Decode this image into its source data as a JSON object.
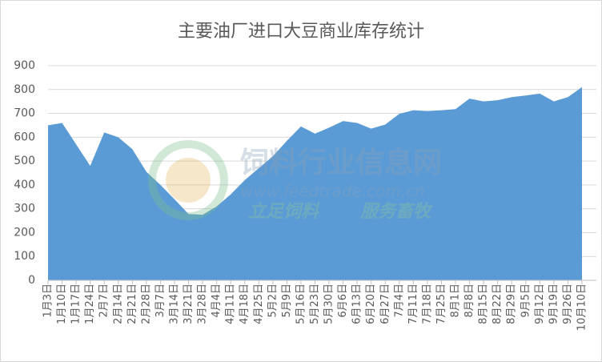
{
  "chart_data": {
    "type": "area",
    "title": "主要油厂进口大豆商业库存统计",
    "categories": [
      "1月3日",
      "1月10日",
      "1月17日",
      "1月24日",
      "2月7日",
      "2月14日",
      "2月21日",
      "2月28日",
      "3月7日",
      "3月14日",
      "3月21日",
      "3月28日",
      "4月4日",
      "4月11日",
      "4月18日",
      "4月25日",
      "5月2日",
      "5月9日",
      "5月16日",
      "5月23日",
      "5月30日",
      "6月6日",
      "6月13日",
      "6月20日",
      "6月27日",
      "7月4日",
      "7月11日",
      "7月18日",
      "7月25日",
      "8月1日",
      "8月8日",
      "8月15日",
      "8月22日",
      "8月29日",
      "9月5日",
      "9月12日",
      "9月19日",
      "9月26日",
      "10月10日"
    ],
    "values": [
      650,
      660,
      570,
      480,
      620,
      600,
      550,
      455,
      400,
      340,
      278,
      275,
      310,
      360,
      420,
      470,
      520,
      585,
      645,
      615,
      640,
      668,
      660,
      636,
      653,
      698,
      713,
      710,
      713,
      718,
      762,
      750,
      755,
      768,
      775,
      783,
      750,
      768,
      810
    ],
    "color": "#5b9bd5",
    "ylim": [
      0,
      900
    ],
    "yticks": [
      0,
      100,
      200,
      300,
      400,
      500,
      600,
      700,
      800,
      900
    ],
    "grid": true,
    "watermark": [
      "饲料行业信息网",
      "www.feedtrade.com.cn",
      "立足饲料",
      "服务畜牧"
    ]
  }
}
